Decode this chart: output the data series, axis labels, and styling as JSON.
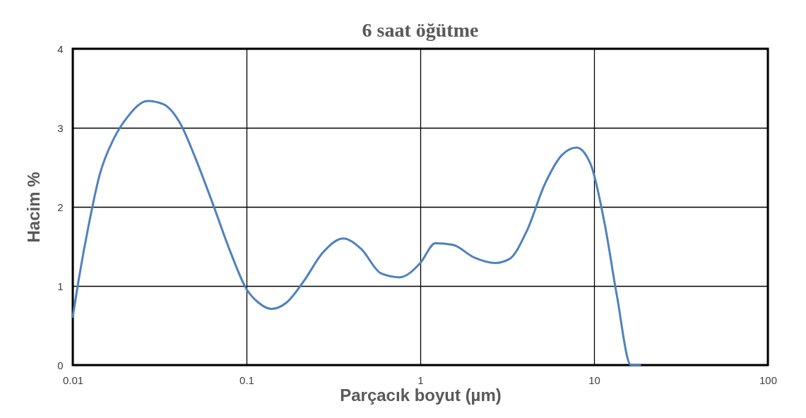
{
  "chart_data": {
    "type": "line",
    "title": "6 saat öğütme",
    "xlabel": "Parçacık boyut (µm)",
    "ylabel": "Hacim %",
    "log": "x",
    "grid": true,
    "marker": "none",
    "line_style": "solid",
    "xlim": [
      0.01,
      100
    ],
    "xticks": [
      0.01,
      0.1,
      1,
      10,
      100
    ],
    "ylim": [
      0,
      4
    ],
    "yticks": [
      0,
      1,
      2,
      3,
      4
    ],
    "series": [
      {
        "color": "#4f81bd",
        "x": [
          0.01,
          0.0108,
          0.0124,
          0.0143,
          0.0172,
          0.0207,
          0.027,
          0.0331,
          0.0419,
          0.0505,
          0.0637,
          0.0808,
          0.1,
          0.117,
          0.139,
          0.17,
          0.215,
          0.272,
          0.36,
          0.456,
          0.594,
          0.762,
          1,
          1.22,
          1.54,
          2.04,
          2.7,
          3.25,
          4.11,
          5.19,
          6.56,
          7.92,
          9.55,
          11.5,
          13.5,
          16.3,
          18.4
        ],
        "values": [
          0.61,
          1.07,
          1.79,
          2.41,
          2.86,
          3.14,
          3.34,
          3.3,
          3.04,
          2.63,
          2.05,
          1.43,
          0.96,
          0.79,
          0.71,
          0.79,
          1.07,
          1.41,
          1.6,
          1.47,
          1.16,
          1.11,
          1.29,
          1.54,
          1.52,
          1.36,
          1.29,
          1.34,
          1.7,
          2.28,
          2.66,
          2.75,
          2.54,
          1.79,
          0.89,
          0,
          0
        ]
      }
    ]
  }
}
